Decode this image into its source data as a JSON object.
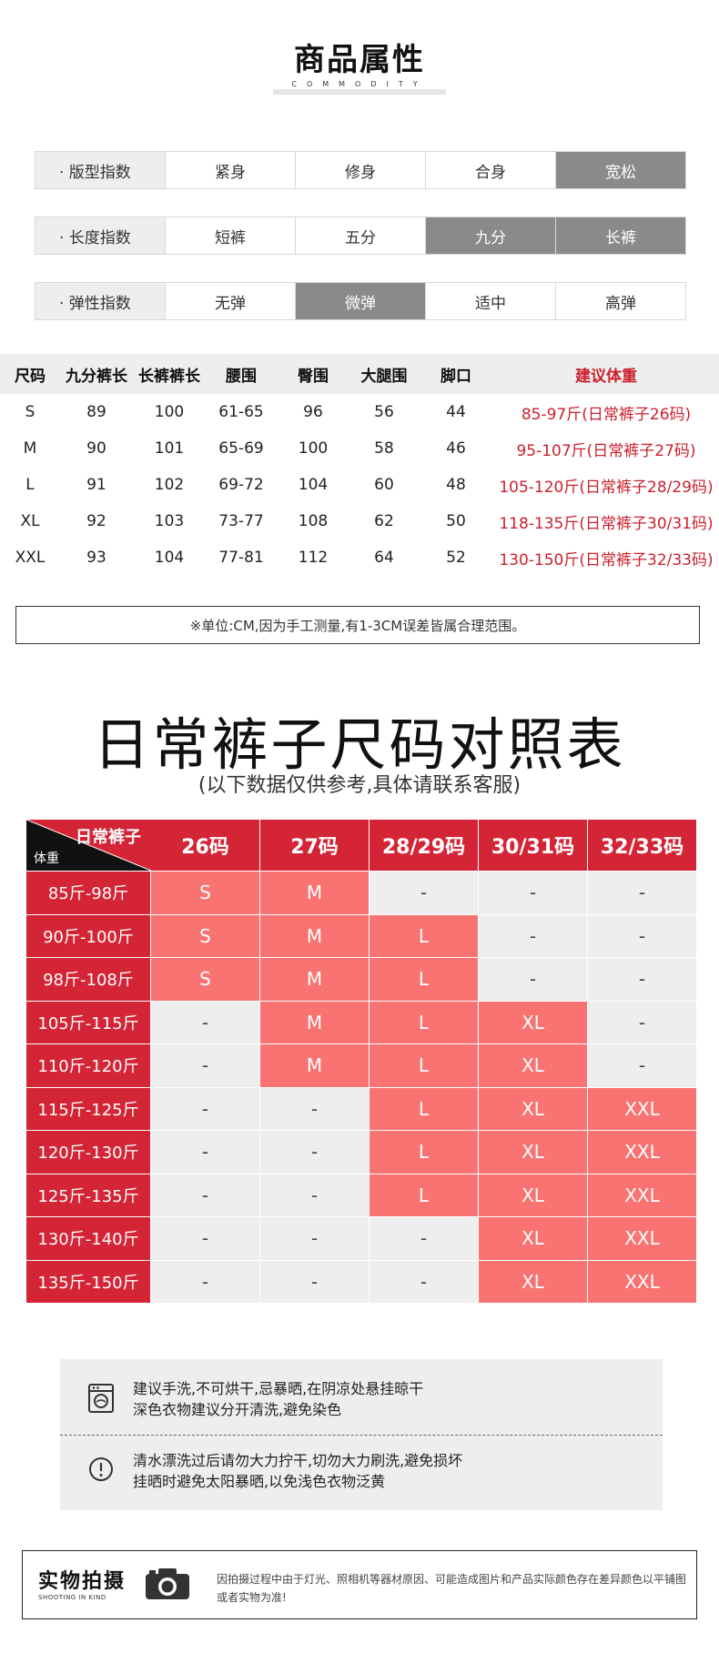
{
  "header": {
    "title": "商品属性",
    "subtitle": "COMMODITY"
  },
  "attributes": [
    {
      "label": "· 版型指数",
      "options": [
        "紧身",
        "修身",
        "合身",
        "宽松"
      ],
      "selected": [
        "宽松"
      ]
    },
    {
      "label": "· 长度指数",
      "options": [
        "短裤",
        "五分",
        "九分",
        "长裤"
      ],
      "selected": [
        "九分",
        "长裤"
      ]
    },
    {
      "label": "· 弹性指数",
      "options": [
        "无弹",
        "微弹",
        "适中",
        "高弹"
      ],
      "selected": [
        "微弹"
      ]
    }
  ],
  "size_table": {
    "headers": [
      "尺码",
      "九分裤长",
      "长裤裤长",
      "腰围",
      "臀围",
      "大腿围",
      "脚口",
      "建议体重"
    ],
    "rows": [
      [
        "S",
        "89",
        "100",
        "61-65",
        "96",
        "56",
        "44",
        "85-97斤(日常裤子26码)"
      ],
      [
        "M",
        "90",
        "101",
        "65-69",
        "100",
        "58",
        "46",
        "95-107斤(日常裤子27码)"
      ],
      [
        "L",
        "91",
        "102",
        "69-72",
        "104",
        "60",
        "48",
        "105-120斤(日常裤子28/29码)"
      ],
      [
        "XL",
        "92",
        "103",
        "73-77",
        "108",
        "62",
        "50",
        "118-135斤(日常裤子30/31码)"
      ],
      [
        "XXL",
        "93",
        "104",
        "77-81",
        "112",
        "64",
        "52",
        "130-150斤(日常裤子32/33码)"
      ]
    ],
    "note": "※单位:CM,因为手工测量,有1-3CM误差皆属合理范围。"
  },
  "comparison": {
    "title": "日常裤子尺码对照表",
    "subtitle": "(以下数据仅供参考,具体请联系客服)",
    "corner_top": "日常裤子",
    "corner_bottom": "体重",
    "columns": [
      "26码",
      "27码",
      "28/29码",
      "30/31码",
      "32/33码"
    ],
    "rows": [
      {
        "weight": "85斤-98斤",
        "cells": [
          "S",
          "M",
          "-",
          "-",
          "-"
        ]
      },
      {
        "weight": "90斤-100斤",
        "cells": [
          "S",
          "M",
          "L",
          "-",
          "-"
        ]
      },
      {
        "weight": "98斤-108斤",
        "cells": [
          "S",
          "M",
          "L",
          "-",
          "-"
        ]
      },
      {
        "weight": "105斤-115斤",
        "cells": [
          "-",
          "M",
          "L",
          "XL",
          "-"
        ]
      },
      {
        "weight": "110斤-120斤",
        "cells": [
          "-",
          "M",
          "L",
          "XL",
          "-"
        ]
      },
      {
        "weight": "115斤-125斤",
        "cells": [
          "-",
          "-",
          "L",
          "XL",
          "XXL"
        ]
      },
      {
        "weight": "120斤-130斤",
        "cells": [
          "-",
          "-",
          "L",
          "XL",
          "XXL"
        ]
      },
      {
        "weight": "125斤-135斤",
        "cells": [
          "-",
          "-",
          "L",
          "XL",
          "XXL"
        ]
      },
      {
        "weight": "130斤-140斤",
        "cells": [
          "-",
          "-",
          "-",
          "XL",
          "XXL"
        ]
      },
      {
        "weight": "135斤-150斤",
        "cells": [
          "-",
          "-",
          "-",
          "XL",
          "XXL"
        ]
      }
    ]
  },
  "care": {
    "wash_icon": "washing-machine-icon",
    "wash_lines": [
      "建议手洗,不可烘干,忌暴晒,在阴凉处悬挂晾干",
      "深色衣物建议分开清洗,避免染色"
    ],
    "warn_icon": "exclamation-circle-icon",
    "warn_lines": [
      "清水漂洗过后请勿大力拧干,切勿大力刷洗,避免损坏",
      "挂晒时避免太阳暴晒,以免浅色衣物泛黄"
    ]
  },
  "photo": {
    "title": "实物拍摄",
    "subtitle": "SHOOTING IN KIND",
    "icon": "camera-icon",
    "text": "因拍摄过程中由于灯光、照相机等器材原因、可能造成图片和产品实际颜色存在差异颜色以平铺图或者实物为准!"
  },
  "colors": {
    "accent_red": "#d42537",
    "highlight_pink": "#f97373",
    "selected_gray": "#8a8a8a",
    "panel_gray": "#eeeeee"
  }
}
